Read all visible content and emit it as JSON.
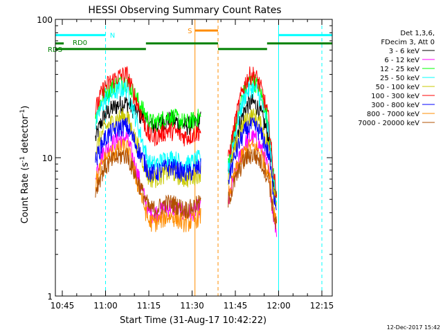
{
  "chart_data": {
    "type": "line",
    "title": "HESSI Observing Summary Count Rates",
    "xlabel": "Start Time (31-Aug-17 10:42:22)",
    "ylabel_main": "Count Rate (s",
    "ylabel_sup1": "-1",
    "ylabel_mid": " detector",
    "ylabel_sup2": "-1",
    "ylabel_end": ")",
    "y_scale": "log",
    "ylim": [
      1,
      100
    ],
    "xlim_minutes": [
      -2.4,
      93.6
    ],
    "yticks": [
      {
        "value": 1,
        "label": "1"
      },
      {
        "value": 10,
        "label": "10"
      },
      {
        "value": 100,
        "label": "100"
      }
    ],
    "xticks": [
      {
        "value": 0,
        "label": "10:45"
      },
      {
        "value": 15,
        "label": "11:00"
      },
      {
        "value": 30,
        "label": "11:15"
      },
      {
        "value": 45,
        "label": "11:30"
      },
      {
        "value": 60,
        "label": "11:45"
      },
      {
        "value": 75,
        "label": "12:00"
      },
      {
        "value": 90,
        "label": "12:15"
      }
    ],
    "legend_header": [
      "Det 1,3,6,",
      "FDecim 3, Att 0"
    ],
    "legend_position": "right",
    "series": [
      {
        "name": "3 - 6 keV",
        "color": "#000000",
        "peak": 25,
        "valley": 18,
        "night": 5.0
      },
      {
        "name": "6 - 12 keV",
        "color": "#ff00ff",
        "peak": 14,
        "valley": 4.2,
        "night": 3.0
      },
      {
        "name": "12 - 25 keV",
        "color": "#00ff00",
        "peak": 36,
        "valley": 19,
        "night": 5.6
      },
      {
        "name": "25 - 50 keV",
        "color": "#00ffff",
        "peak": 32,
        "valley": 9.5,
        "night": 5.2
      },
      {
        "name": "50 - 100 keV",
        "color": "#c8c800",
        "peak": 20,
        "valley": 7.5,
        "night": 4.8
      },
      {
        "name": "100 - 300 keV",
        "color": "#ff0000",
        "peak": 40,
        "valley": 15,
        "night": 5.8
      },
      {
        "name": "300 - 800 keV",
        "color": "#0000ff",
        "peak": 17,
        "valley": 8.2,
        "night": 4.5
      },
      {
        "name": "800 - 7000 keV",
        "color": "#ff8c00",
        "peak": 12,
        "valley": 3.6,
        "night": 3.5
      },
      {
        "name": "7000 - 20000 keV",
        "color": "#b05000",
        "peak": 10.5,
        "valley": 4.5,
        "night": 3.2
      }
    ],
    "day_intervals_minutes": [
      [
        11.5,
        48
      ],
      [
        57.5,
        74.3
      ]
    ],
    "flag_bars": [
      {
        "label": "N",
        "color": "#00ffff",
        "y_value": 77,
        "segments": [
          [
            -2.4,
            15
          ],
          [
            75,
            93.6
          ]
        ]
      },
      {
        "label": "S",
        "color": "#ff8c00",
        "y_value": 83,
        "segments": [
          [
            46,
            54
          ]
        ]
      },
      {
        "label": "RD0",
        "color": "#008000",
        "y_value": 67,
        "segments": [
          [
            -2.4,
            0.5
          ],
          [
            29,
            54
          ],
          [
            71,
            93.6
          ]
        ]
      },
      {
        "label": "RDS",
        "color": "#008000",
        "y_value": 61,
        "segments": [
          [
            -2.4,
            29
          ],
          [
            54,
            71
          ]
        ]
      }
    ],
    "vertical_markers": [
      {
        "x": -2.4,
        "color": "#00ffff",
        "style": "solid"
      },
      {
        "x": 15,
        "color": "#00ffff",
        "style": "dashed"
      },
      {
        "x": 75,
        "color": "#00ffff",
        "style": "solid"
      },
      {
        "x": 90,
        "color": "#00ffff",
        "style": "dashed"
      },
      {
        "x": 46,
        "color": "#ff8c00",
        "style": "solid"
      },
      {
        "x": 54,
        "color": "#ff8c00",
        "style": "dashed"
      }
    ],
    "timestamp": "12-Dec-2017 15:42"
  }
}
